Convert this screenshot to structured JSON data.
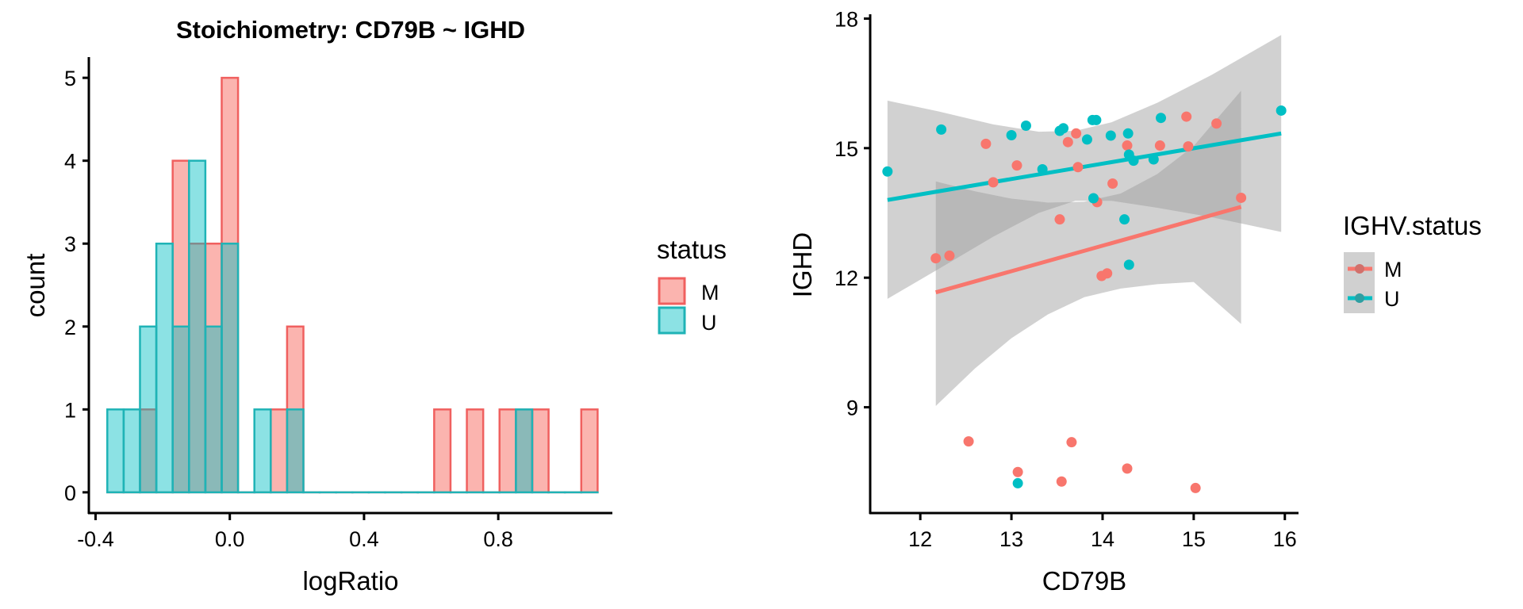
{
  "colors": {
    "M": "#F8766D",
    "U": "#00BFC4",
    "M_outline": "#F0605F",
    "U_outline": "#1FB3B6",
    "band": "#999999"
  },
  "chart_data": [
    {
      "type": "bar",
      "subtype": "histogram-overlay",
      "title": "Stoichiometry: CD79B ~ IGHD",
      "xlabel": "logRatio",
      "ylabel": "count",
      "xlim": [
        -0.42,
        1.14
      ],
      "ylim": [
        -0.25,
        5.25
      ],
      "xticks": [
        -0.4,
        0.0,
        0.4,
        0.8
      ],
      "xtick_labels": [
        "-0.4",
        "0.0",
        "0.4",
        "0.8"
      ],
      "yticks": [
        0,
        1,
        2,
        3,
        4,
        5
      ],
      "ytick_labels": [
        "0",
        "1",
        "2",
        "3",
        "4",
        "5"
      ],
      "bin_width": 0.0487,
      "bin_start": -0.365,
      "legend": {
        "title": "status",
        "entries": [
          "M",
          "U"
        ],
        "position": "right"
      },
      "series": [
        {
          "name": "M",
          "counts": [
            0,
            0,
            1,
            0,
            4,
            3,
            3,
            5,
            0,
            0,
            1,
            2,
            0,
            0,
            0,
            0,
            0,
            0,
            0,
            0,
            1,
            0,
            1,
            0,
            1,
            1,
            1,
            0,
            0,
            1
          ]
        },
        {
          "name": "U",
          "counts": [
            1,
            1,
            2,
            3,
            2,
            4,
            2,
            3,
            0,
            1,
            0,
            1,
            0,
            0,
            0,
            0,
            0,
            0,
            0,
            0,
            0,
            0,
            0,
            0,
            0,
            1,
            0,
            0,
            0,
            0
          ]
        }
      ]
    },
    {
      "type": "scatter",
      "title": "",
      "xlabel": "CD79B",
      "ylabel": "IGHD",
      "xlim": [
        11.45,
        16.15
      ],
      "ylim": [
        6.55,
        18.1
      ],
      "xticks": [
        12,
        13,
        14,
        15,
        16
      ],
      "xtick_labels": [
        "12",
        "13",
        "14",
        "15",
        "16"
      ],
      "yticks": [
        9,
        12,
        15,
        18
      ],
      "ytick_labels": [
        "9",
        "12",
        "15",
        "18"
      ],
      "legend": {
        "title": "IGHV.status",
        "entries": [
          "M",
          "U"
        ],
        "position": "right"
      },
      "series": [
        {
          "name": "M",
          "points": [
            [
              12.72,
              15.1
            ],
            [
              13.06,
              14.6
            ],
            [
              12.8,
              14.21
            ],
            [
              12.17,
              12.45
            ],
            [
              12.32,
              12.51
            ],
            [
              13.71,
              15.34
            ],
            [
              13.62,
              15.14
            ],
            [
              13.73,
              14.56
            ],
            [
              13.53,
              13.35
            ],
            [
              13.94,
              13.75
            ],
            [
              13.99,
              12.04
            ],
            [
              14.05,
              12.1
            ],
            [
              14.11,
              14.18
            ],
            [
              14.27,
              15.06
            ],
            [
              14.63,
              15.06
            ],
            [
              14.92,
              15.73
            ],
            [
              14.94,
              15.04
            ],
            [
              15.25,
              15.57
            ],
            [
              15.52,
              13.85
            ],
            [
              12.53,
              8.21
            ],
            [
              13.66,
              8.19
            ],
            [
              13.07,
              7.5
            ],
            [
              13.55,
              7.28
            ],
            [
              14.27,
              7.58
            ],
            [
              15.02,
              7.13
            ]
          ],
          "fit": {
            "x": [
              12.17,
              15.52
            ],
            "y": [
              11.66,
              13.64
            ]
          },
          "band": {
            "x": [
              12.17,
              12.6,
              13.0,
              13.4,
              13.8,
              14.2,
              14.6,
              15.0,
              15.52
            ],
            "upper": [
              14.23,
              14.0,
              13.83,
              13.74,
              13.76,
              13.95,
              14.4,
              15.05,
              16.33
            ],
            "lower": [
              9.03,
              9.9,
              10.6,
              11.15,
              11.55,
              11.75,
              11.85,
              11.9,
              10.93
            ]
          }
        },
        {
          "name": "U",
          "points": [
            [
              11.64,
              14.46
            ],
            [
              12.23,
              15.43
            ],
            [
              13.16,
              15.52
            ],
            [
              13.0,
              15.3
            ],
            [
              13.34,
              14.51
            ],
            [
              13.53,
              15.4
            ],
            [
              13.57,
              15.46
            ],
            [
              13.83,
              15.2
            ],
            [
              13.89,
              15.65
            ],
            [
              13.93,
              15.65
            ],
            [
              13.9,
              13.84
            ],
            [
              14.09,
              15.29
            ],
            [
              14.28,
              15.34
            ],
            [
              14.29,
              14.85
            ],
            [
              14.34,
              14.71
            ],
            [
              14.24,
              13.35
            ],
            [
              14.29,
              12.3
            ],
            [
              14.56,
              14.74
            ],
            [
              14.64,
              15.7
            ],
            [
              15.96,
              15.87
            ],
            [
              13.07,
              7.24
            ]
          ],
          "fit": {
            "x": [
              11.64,
              15.96
            ],
            "y": [
              13.8,
              15.34
            ]
          },
          "band": {
            "x": [
              11.64,
              12.2,
              12.8,
              13.3,
              13.7,
              14.1,
              14.6,
              15.2,
              15.96
            ],
            "upper": [
              16.1,
              15.85,
              15.55,
              15.38,
              15.4,
              15.6,
              16.05,
              16.7,
              17.62
            ],
            "lower": [
              11.51,
              12.2,
              12.95,
              13.5,
              13.78,
              13.78,
              13.62,
              13.4,
              13.06
            ]
          }
        }
      ]
    }
  ]
}
